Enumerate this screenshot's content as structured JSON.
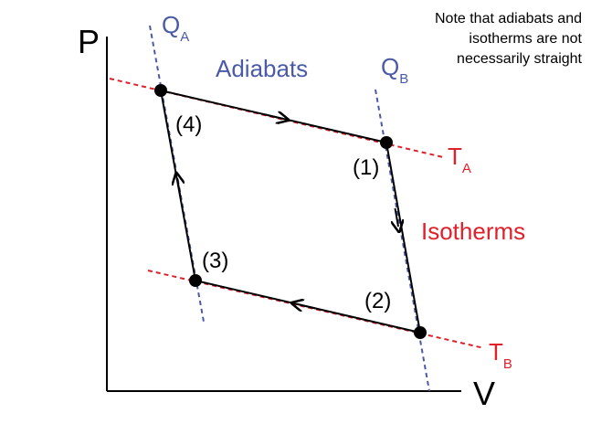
{
  "axes": {
    "y_label": "P",
    "x_label": "V"
  },
  "labels": {
    "adiabats": "Adiabats",
    "isotherms": "Isotherms",
    "qa_main": "Q",
    "qa_sub": "A",
    "qb_main": "Q",
    "qb_sub": "B",
    "ta_main": "T",
    "ta_sub": "A",
    "tb_main": "T",
    "tb_sub": "B"
  },
  "points": {
    "p1": "(1)",
    "p2": "(2)",
    "p3": "(3)",
    "p4": "(4)"
  },
  "note": {
    "lines": [
      "Note that adiabats and",
      "isotherms are not",
      "necessarily straight"
    ]
  },
  "colors": {
    "adiabat": "#4a5aa8",
    "isotherm": "#e0202a",
    "cycle": "#000000"
  }
}
